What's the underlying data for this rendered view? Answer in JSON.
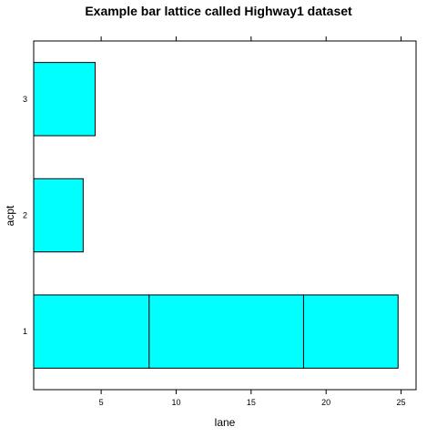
{
  "chart_data": {
    "type": "bar",
    "orientation": "horizontal",
    "stacked": true,
    "title": "Example bar lattice called Highway1 dataset",
    "xlabel": "lane",
    "ylabel": "acpt",
    "categories": [
      "1",
      "2",
      "3"
    ],
    "x_ticks": [
      "5",
      "10",
      "15",
      "20",
      "25"
    ],
    "xlim": [
      0.5,
      26
    ],
    "bars": [
      {
        "category": "1",
        "segments": [
          [
            0.5,
            8.2
          ],
          [
            8.2,
            18.5
          ],
          [
            18.5,
            24.8
          ]
        ]
      },
      {
        "category": "2",
        "segments": [
          [
            0.5,
            3.8
          ]
        ]
      },
      {
        "category": "3",
        "segments": [
          [
            0.5,
            4.6
          ]
        ]
      }
    ],
    "bar_color": "#00ffff",
    "grid": false
  }
}
